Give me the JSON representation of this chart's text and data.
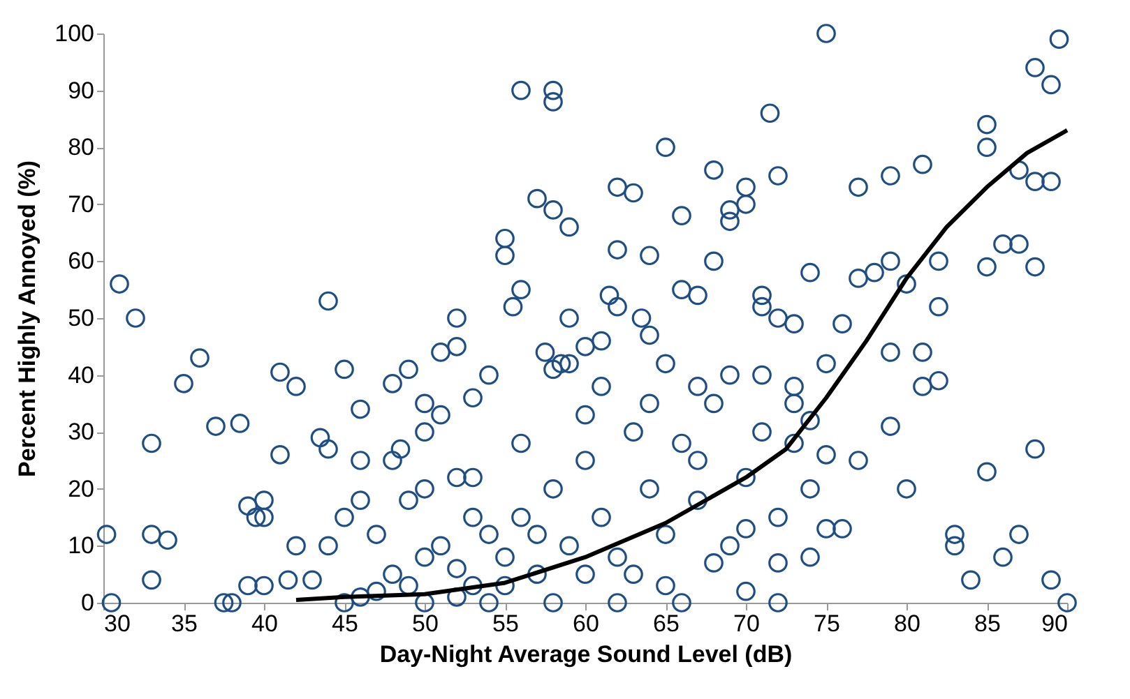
{
  "chart_data": {
    "type": "scatter",
    "xlabel": "Day-Night Average Sound Level (dB)",
    "ylabel": "Percent Highly Annoyed (%)",
    "xlim": [
      30,
      90
    ],
    "ylim": [
      0,
      100
    ],
    "xticks": [
      30,
      35,
      40,
      45,
      50,
      55,
      60,
      65,
      70,
      75,
      80,
      85,
      90
    ],
    "yticks": [
      0,
      10,
      20,
      30,
      40,
      50,
      60,
      70,
      80,
      90,
      100
    ],
    "grid": false,
    "series": [
      {
        "color": "#1f4e85",
        "marker": "circle",
        "x": [
          30.2,
          30.5,
          31,
          32,
          33,
          33,
          33,
          34,
          35,
          36,
          37,
          37.5,
          38,
          38.5,
          39,
          39.5,
          40,
          40,
          41,
          41,
          42,
          42,
          41.5,
          39,
          40,
          44,
          43.5,
          44,
          43,
          44,
          45,
          45,
          46,
          46,
          46,
          47,
          48,
          48,
          48.5,
          49,
          49,
          50,
          50,
          50,
          51,
          51,
          52,
          52,
          52,
          53,
          53,
          54,
          55,
          55,
          55.5,
          56,
          56,
          57,
          57.5,
          58,
          58,
          58,
          58,
          58.5,
          59,
          59,
          59,
          60,
          61,
          61,
          61.5,
          62,
          62,
          62,
          63,
          63.5,
          64,
          64,
          65,
          65,
          66,
          66,
          67,
          67,
          68,
          68,
          69,
          69,
          70,
          70,
          71,
          71,
          71.5,
          72,
          72,
          73,
          73,
          74,
          75,
          75,
          76,
          76,
          77,
          77,
          77,
          78,
          79,
          79,
          79,
          79,
          80,
          80,
          81,
          81,
          81,
          82,
          82,
          82,
          83,
          83,
          84,
          85,
          85,
          85,
          85,
          86,
          86,
          87,
          87,
          87,
          88,
          88,
          88,
          88,
          89,
          89,
          89,
          89.5,
          90,
          45,
          46,
          47,
          48,
          49,
          50,
          51,
          52,
          53,
          54,
          55,
          56,
          57,
          58,
          59,
          60,
          61,
          62,
          63,
          64,
          65,
          66,
          67,
          68,
          69,
          70,
          71,
          72,
          73,
          74,
          72,
          70,
          66,
          62,
          58,
          54,
          50,
          64,
          60,
          56,
          57,
          53,
          67,
          69,
          71,
          73,
          74,
          63,
          65,
          68,
          60,
          55,
          52,
          70,
          72,
          75,
          75,
          74
        ],
        "values": [
          12,
          0,
          56,
          50,
          28,
          12,
          4,
          11,
          38.5,
          43,
          31,
          0,
          0,
          31.5,
          17,
          15,
          18,
          15,
          26,
          40.5,
          38,
          10,
          4,
          3,
          3,
          53,
          29,
          27,
          4,
          10,
          41,
          15,
          34,
          18,
          25,
          12,
          38.5,
          25,
          27,
          41,
          18,
          35,
          30,
          20,
          44,
          33,
          50,
          45,
          22,
          36,
          22,
          40,
          64,
          61,
          52,
          90,
          55,
          71,
          44,
          90,
          88,
          69,
          41,
          42,
          66,
          50,
          42,
          45,
          46,
          38,
          54,
          73,
          62,
          52,
          72,
          50,
          61,
          47,
          80,
          42,
          68,
          55,
          54,
          38,
          76,
          60,
          69,
          67,
          73,
          70,
          54,
          52,
          86,
          75,
          50,
          49,
          38,
          58,
          100,
          42,
          49,
          13,
          73,
          57,
          25,
          58,
          75,
          60,
          44,
          31,
          20,
          56,
          77,
          44,
          38,
          60,
          52,
          39,
          10,
          12,
          4,
          84,
          80,
          59,
          23,
          63,
          8,
          76,
          12,
          63,
          94,
          74,
          59,
          27,
          91,
          74,
          4,
          99,
          0,
          0,
          1,
          2,
          5,
          3,
          8,
          10,
          6,
          3,
          12,
          8,
          15,
          5,
          20,
          10,
          25,
          15,
          8,
          30,
          20,
          12,
          28,
          18,
          35,
          10,
          22,
          30,
          15,
          28,
          8,
          0,
          2,
          0,
          0,
          0,
          0,
          0,
          35,
          33,
          28,
          12,
          15,
          25,
          40,
          40,
          35,
          20,
          5,
          3,
          7,
          5,
          3,
          1,
          13,
          7,
          26,
          13,
          32
        ]
      },
      {
        "type": "line",
        "marker": "none",
        "color": "#000000",
        "x": [
          42,
          45,
          50,
          55,
          60,
          65,
          70,
          72.5,
          75,
          77.5,
          80,
          82.5,
          85,
          87.5,
          90
        ],
        "values": [
          0.5,
          1,
          1.5,
          3.5,
          8,
          14,
          22,
          27,
          36,
          46,
          57,
          66,
          73,
          79,
          83
        ]
      }
    ]
  }
}
